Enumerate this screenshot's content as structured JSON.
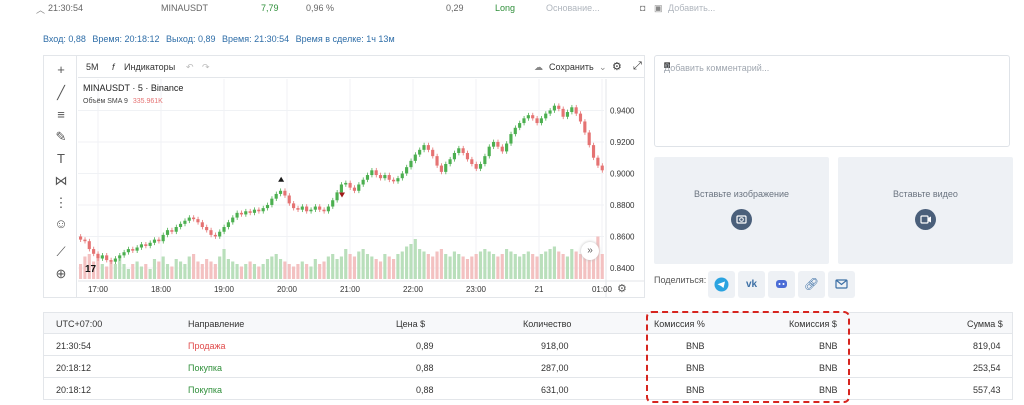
{
  "topbar": {
    "time": "21:30:54",
    "symbol": "MINAUSDT",
    "value": "7,79",
    "percent": "0,96 %",
    "amount": "0,29",
    "side": "Long",
    "reason_placeholder": "Основание...",
    "add_label": "Добавить..."
  },
  "trade_info": {
    "entry": "Вход: 0,88",
    "entry_time": "Время: 20:18:12",
    "exit": "Выход: 0,89",
    "exit_time": "Время: 21:30:54",
    "duration": "Время в сделке: 1ч 13м"
  },
  "chart_toolbar": {
    "interval": "5M",
    "indicators": "Индикаторы",
    "save": "Сохранить"
  },
  "chart_data": {
    "type": "candlestick",
    "title": "MINAUSDT · 5 · Binance",
    "volume_label": "Объём SMA 9",
    "volume_value": "335.961K",
    "y_ticks": [
      "0.9400",
      "0.9200",
      "0.9000",
      "0.8800",
      "0.8600",
      "0.8400"
    ],
    "x_ticks": [
      "17:00",
      "18:00",
      "19:00",
      "20:00",
      "21:00",
      "22:00",
      "23:00",
      "21",
      "01:00"
    ],
    "ylim": [
      0.833,
      0.946
    ],
    "close": [
      0.858,
      0.857,
      0.852,
      0.849,
      0.846,
      0.848,
      0.845,
      0.844,
      0.846,
      0.848,
      0.85,
      0.852,
      0.851,
      0.853,
      0.855,
      0.854,
      0.856,
      0.858,
      0.857,
      0.861,
      0.864,
      0.863,
      0.866,
      0.868,
      0.87,
      0.872,
      0.871,
      0.869,
      0.866,
      0.864,
      0.861,
      0.86,
      0.863,
      0.866,
      0.869,
      0.872,
      0.875,
      0.874,
      0.876,
      0.875,
      0.877,
      0.876,
      0.878,
      0.88,
      0.884,
      0.887,
      0.889,
      0.886,
      0.881,
      0.878,
      0.877,
      0.879,
      0.876,
      0.877,
      0.879,
      0.877,
      0.876,
      0.879,
      0.883,
      0.888,
      0.893,
      0.894,
      0.891,
      0.889,
      0.893,
      0.896,
      0.899,
      0.902,
      0.899,
      0.897,
      0.899,
      0.896,
      0.895,
      0.897,
      0.9,
      0.904,
      0.908,
      0.912,
      0.915,
      0.918,
      0.915,
      0.911,
      0.905,
      0.901,
      0.906,
      0.909,
      0.913,
      0.916,
      0.913,
      0.909,
      0.906,
      0.903,
      0.906,
      0.911,
      0.917,
      0.92,
      0.917,
      0.914,
      0.919,
      0.925,
      0.929,
      0.932,
      0.935,
      0.937,
      0.935,
      0.932,
      0.935,
      0.938,
      0.94,
      0.943,
      0.941,
      0.936,
      0.939,
      0.942,
      0.938,
      0.933,
      0.926,
      0.918,
      0.91,
      0.905,
      0.902
    ],
    "volume": [
      0.3,
      0.45,
      0.5,
      0.35,
      0.4,
      0.3,
      0.25,
      0.35,
      0.3,
      0.4,
      0.3,
      0.2,
      0.3,
      0.35,
      0.25,
      0.3,
      0.2,
      0.4,
      0.35,
      0.45,
      0.3,
      0.25,
      0.4,
      0.35,
      0.3,
      0.45,
      0.5,
      0.35,
      0.3,
      0.4,
      0.35,
      0.3,
      0.45,
      0.6,
      0.4,
      0.35,
      0.3,
      0.25,
      0.3,
      0.35,
      0.3,
      0.25,
      0.3,
      0.4,
      0.45,
      0.5,
      0.4,
      0.35,
      0.3,
      0.25,
      0.3,
      0.35,
      0.3,
      0.25,
      0.4,
      0.3,
      0.35,
      0.45,
      0.5,
      0.4,
      0.45,
      0.6,
      0.5,
      0.45,
      0.55,
      0.6,
      0.5,
      0.45,
      0.4,
      0.35,
      0.5,
      0.45,
      0.4,
      0.5,
      0.55,
      0.65,
      0.7,
      0.8,
      0.6,
      0.55,
      0.5,
      0.45,
      0.55,
      0.6,
      0.5,
      0.45,
      0.55,
      0.5,
      0.45,
      0.4,
      0.45,
      0.5,
      0.55,
      0.6,
      0.55,
      0.5,
      0.45,
      0.5,
      0.6,
      0.55,
      0.5,
      0.45,
      0.5,
      0.55,
      0.5,
      0.45,
      0.5,
      0.55,
      0.6,
      0.65,
      0.55,
      0.5,
      0.45,
      0.6,
      0.55,
      0.5,
      0.45,
      0.55,
      0.6,
      0.85,
      0.5
    ],
    "markers": [
      {
        "index": 46,
        "dir": "up",
        "color": "#1a1a1a"
      },
      {
        "index": 60,
        "dir": "down",
        "color": "#a01a1a"
      }
    ]
  },
  "comment": {
    "placeholder": "Добавить комментарий..."
  },
  "media": {
    "image": "Вставьте изображение",
    "video": "Вставьте видео"
  },
  "share": {
    "label": "Поделиться:"
  },
  "table": {
    "headers": [
      "UTC+07:00",
      "Направление",
      "Цена $",
      "Количество",
      "Комиссия %",
      "Комиссия $",
      "Сумма $"
    ],
    "rows": [
      [
        "21:30:54",
        "Продажа",
        "0,89",
        "918,00",
        "BNB",
        "BNB",
        "819,04"
      ],
      [
        "20:18:12",
        "Покупка",
        "0,88",
        "287,00",
        "BNB",
        "BNB",
        "253,54"
      ],
      [
        "20:18:12",
        "Покупка",
        "0,88",
        "631,00",
        "BNB",
        "BNB",
        "557,43"
      ]
    ]
  },
  "colors": {
    "up": "#4caf50",
    "down": "#e57373",
    "accent": "#2f6ea8",
    "highlight": "#d6251f"
  }
}
